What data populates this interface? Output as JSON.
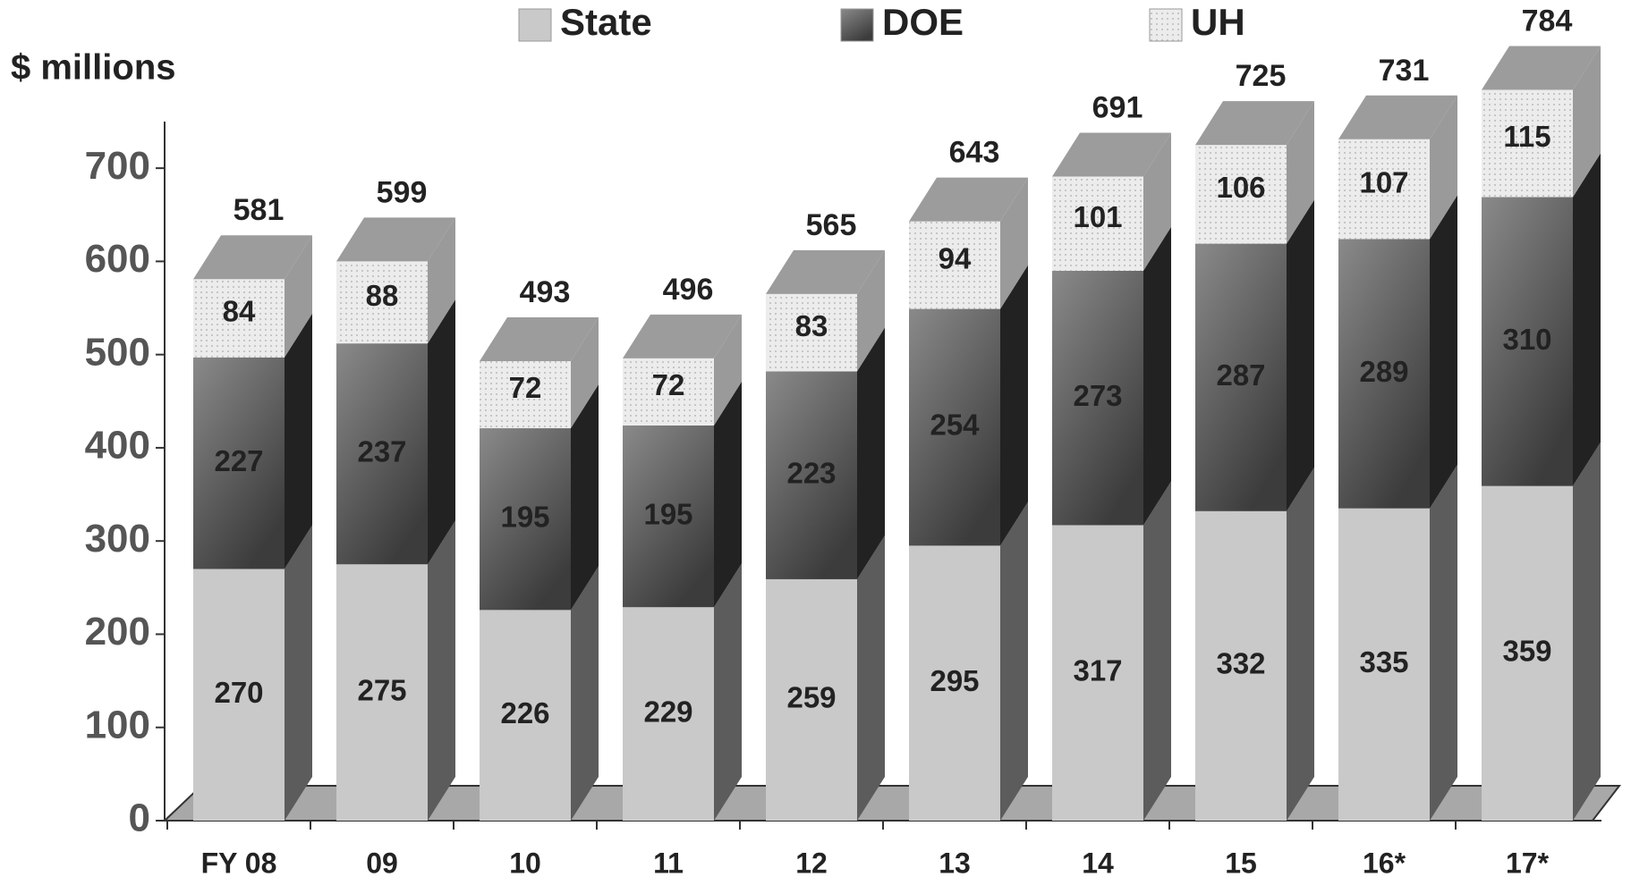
{
  "chart_data": {
    "type": "bar3d_stacked",
    "y_label": "$ millions",
    "categories": [
      "FY 08",
      "09",
      "10",
      "11",
      "12",
      "13",
      "14",
      "15",
      "16*",
      "17*"
    ],
    "series": [
      {
        "name": "State",
        "color": "#c9c9c9",
        "values": [
          270,
          275,
          226,
          229,
          259,
          295,
          317,
          332,
          335,
          359
        ]
      },
      {
        "name": "DOE",
        "color": "#5a5a5a",
        "values": [
          227,
          237,
          195,
          195,
          223,
          254,
          273,
          287,
          289,
          310
        ]
      },
      {
        "name": "UH",
        "color": "#e6e6e6",
        "values": [
          84,
          88,
          72,
          72,
          83,
          94,
          101,
          106,
          107,
          115
        ]
      }
    ],
    "totals": [
      581,
      599,
      493,
      496,
      565,
      643,
      691,
      725,
      731,
      784
    ],
    "ylim": [
      0,
      750
    ],
    "yticks": [
      0,
      100,
      200,
      300,
      400,
      500,
      600,
      700
    ]
  }
}
